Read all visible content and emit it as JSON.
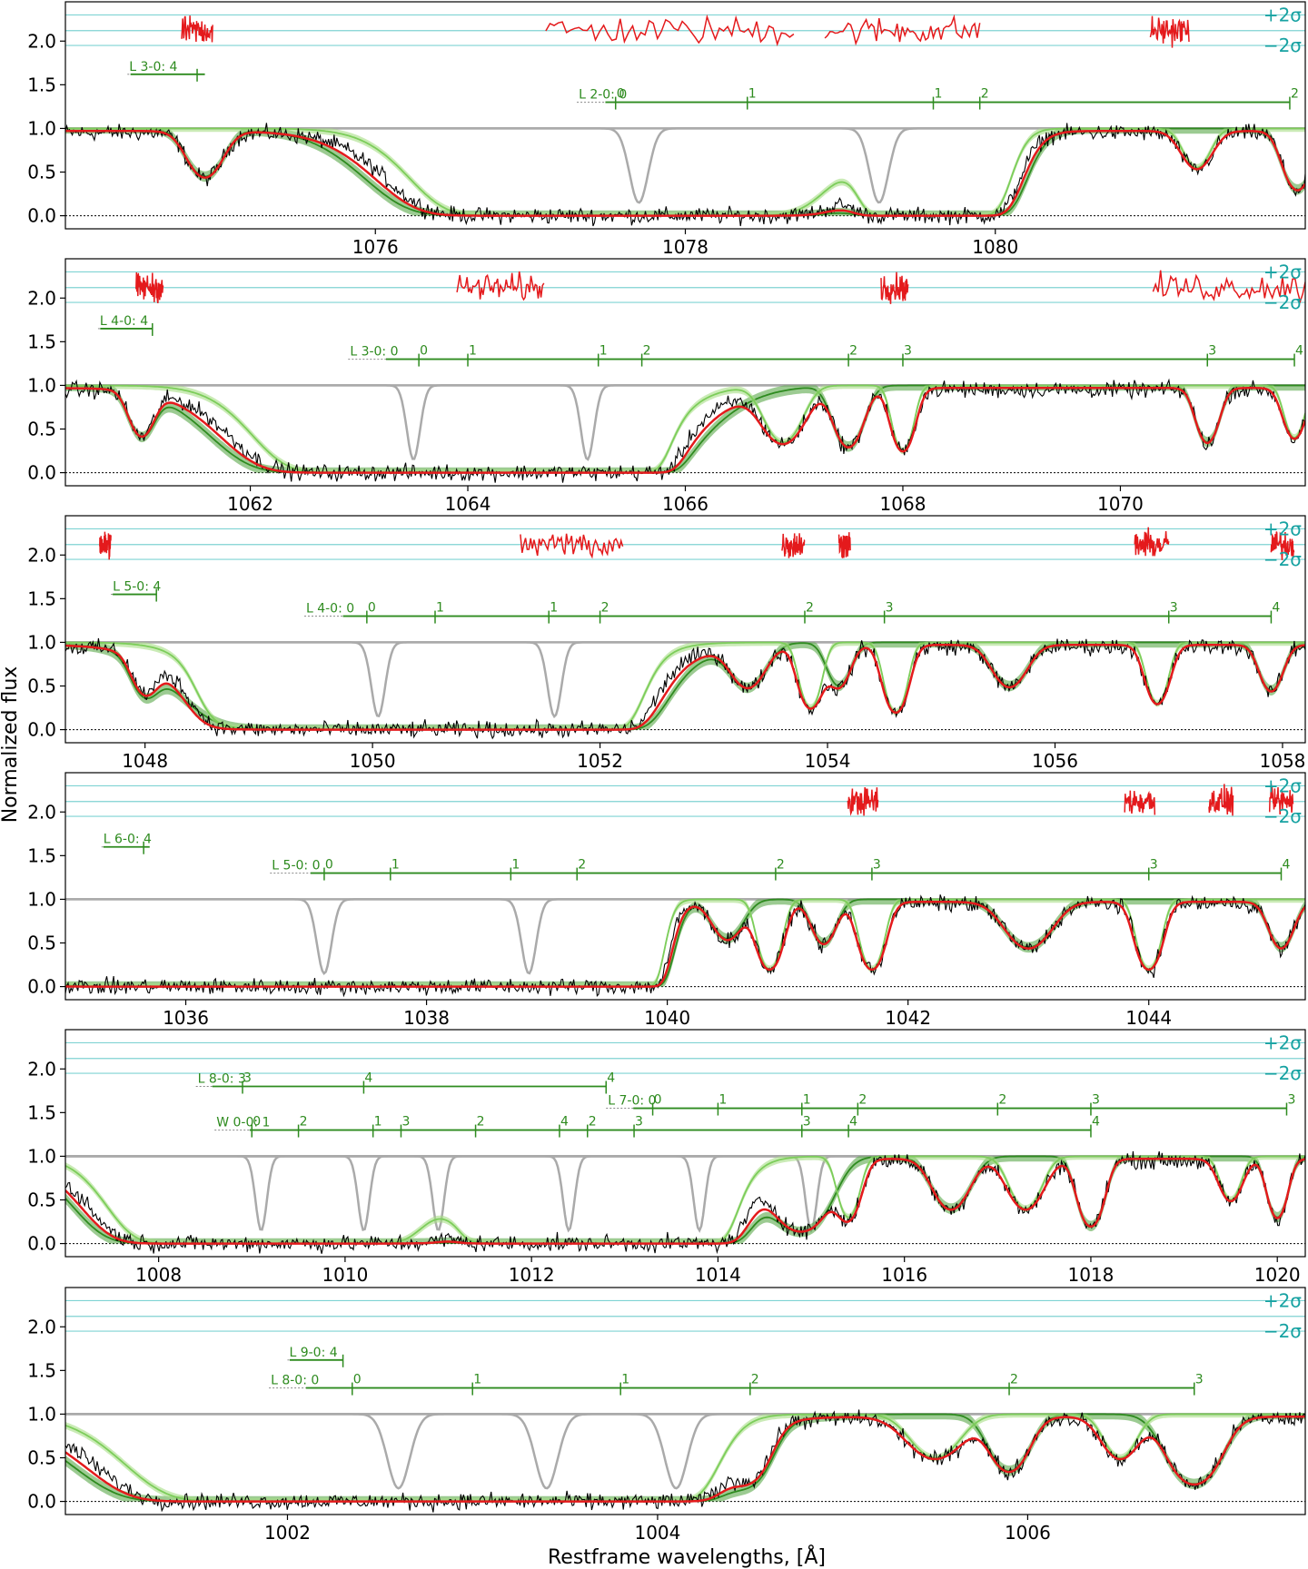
{
  "figure": {
    "ylabel": "Normalized flux",
    "xlabel": "Restframe wavelengths, [Å]",
    "sigma_labels": {
      "plus": "+2σ",
      "minus": "−2σ"
    },
    "colors": {
      "data": "#000000",
      "total_model": "#e41a1c",
      "residuals": "#e41a1c",
      "component_dark": "#2e8b1f",
      "component_light": "#7ccd5a",
      "band_dark": "#5aa84a",
      "band_light": "#a6dd86",
      "other_absorber": "#aaaaaa",
      "sigma_lines": "#7fd3d3",
      "line_markers": "#2e8b1f"
    }
  },
  "chart_data": [
    {
      "type": "line",
      "panel": 1,
      "xlim": [
        1074.0,
        1082.0
      ],
      "ylim": [
        -0.15,
        2.45
      ],
      "xticks": [
        1076,
        1078,
        1080
      ],
      "yticks": [
        0.0,
        0.5,
        1.0,
        1.5,
        2.0
      ],
      "ytick_labels": [
        "0.0",
        "0.5",
        "1.0",
        "1.5",
        "2.0"
      ],
      "absorption": [
        {
          "center": 1074.9,
          "depth": 0.55,
          "width": 0.09
        },
        {
          "center": 1077.6,
          "depth": 1.0,
          "width": 0.55
        },
        {
          "center": 1078.35,
          "depth": 0.7,
          "width": 0.3
        },
        {
          "center": 1079.3,
          "depth": 0.45,
          "width": 0.1
        },
        {
          "center": 1079.6,
          "depth": 1.0,
          "width": 0.2
        },
        {
          "center": 1081.3,
          "depth": 0.45,
          "width": 0.08
        },
        {
          "center": 1081.95,
          "depth": 0.7,
          "width": 0.07
        }
      ],
      "gray_lines": [
        1077.7,
        1079.25
      ],
      "line_series": [
        {
          "label": "L 3-0: 4",
          "y": 1.62,
          "start": 1074.4,
          "end": 1074.9,
          "ticks": [
            {
              "x": 1074.85,
              "t": ""
            }
          ]
        },
        {
          "label": "L 2-0: 0",
          "y": 1.3,
          "start": 1077.3,
          "end": 1081.9,
          "ticks": [
            {
              "x": 1077.55,
              "t": "0"
            },
            {
              "x": 1078.4,
              "t": "1"
            },
            {
              "x": 1079.6,
              "t": "1"
            },
            {
              "x": 1079.9,
              "t": "2"
            },
            {
              "x": 1081.9,
              "t": "2"
            }
          ]
        }
      ],
      "residual_ranges": [
        [
          1074.75,
          1074.95
        ],
        [
          1077.1,
          1078.7
        ],
        [
          1078.9,
          1079.9
        ],
        [
          1081.0,
          1081.25
        ]
      ]
    },
    {
      "type": "line",
      "panel": 2,
      "xlim": [
        1060.3,
        1071.7
      ],
      "ylim": [
        -0.15,
        2.45
      ],
      "xticks": [
        1062,
        1064,
        1066,
        1068,
        1070
      ],
      "yticks": [
        0.0,
        0.5,
        1.0,
        1.5,
        2.0
      ],
      "ytick_labels": [
        "0.0",
        "0.5",
        "1.0",
        "1.5",
        "2.0"
      ],
      "absorption": [
        {
          "center": 1061.0,
          "depth": 0.55,
          "width": 0.09
        },
        {
          "center": 1063.9,
          "depth": 1.0,
          "width": 0.75
        },
        {
          "center": 1064.7,
          "depth": 0.6,
          "width": 0.15
        },
        {
          "center": 1065.2,
          "depth": 1.0,
          "width": 0.25
        },
        {
          "center": 1065.7,
          "depth": 0.7,
          "width": 0.12
        },
        {
          "center": 1066.9,
          "depth": 0.65,
          "width": 0.15
        },
        {
          "center": 1067.5,
          "depth": 0.7,
          "width": 0.1
        },
        {
          "center": 1068.0,
          "depth": 0.75,
          "width": 0.08
        },
        {
          "center": 1070.8,
          "depth": 0.65,
          "width": 0.08
        },
        {
          "center": 1071.6,
          "depth": 0.6,
          "width": 0.08
        }
      ],
      "gray_lines": [
        1063.5,
        1065.1
      ],
      "line_series": [
        {
          "label": "L 4-0: 4",
          "y": 1.65,
          "start": 1060.6,
          "end": 1061.1,
          "ticks": [
            {
              "x": 1061.1,
              "t": ""
            }
          ]
        },
        {
          "label": "L 3-0: 0",
          "y": 1.3,
          "start": 1062.9,
          "end": 1071.6,
          "ticks": [
            {
              "x": 1063.55,
              "t": "0"
            },
            {
              "x": 1064.0,
              "t": "1"
            },
            {
              "x": 1065.2,
              "t": "1"
            },
            {
              "x": 1065.6,
              "t": "2"
            },
            {
              "x": 1067.5,
              "t": "2"
            },
            {
              "x": 1068.0,
              "t": "3"
            },
            {
              "x": 1070.8,
              "t": "3"
            },
            {
              "x": 1071.6,
              "t": "4"
            }
          ]
        }
      ],
      "residual_ranges": [
        [
          1060.95,
          1061.2
        ],
        [
          1063.9,
          1064.7
        ],
        [
          1067.8,
          1068.05
        ],
        [
          1070.3,
          1071.7
        ]
      ]
    },
    {
      "type": "line",
      "panel": 3,
      "xlim": [
        1047.3,
        1058.2
      ],
      "ylim": [
        -0.15,
        2.45
      ],
      "xticks": [
        1048,
        1050,
        1052,
        1054,
        1056,
        1058
      ],
      "yticks": [
        0.0,
        0.5,
        1.0,
        1.5,
        2.0
      ],
      "ytick_labels": [
        "0.0",
        "0.5",
        "1.0",
        "1.5",
        "2.0"
      ],
      "absorption": [
        {
          "center": 1048.0,
          "depth": 0.5,
          "width": 0.09
        },
        {
          "center": 1048.8,
          "depth": 0.9,
          "width": 0.2
        },
        {
          "center": 1050.4,
          "depth": 1.0,
          "width": 0.7
        },
        {
          "center": 1051.1,
          "depth": 0.55,
          "width": 0.12
        },
        {
          "center": 1051.6,
          "depth": 1.0,
          "width": 0.3
        },
        {
          "center": 1052.0,
          "depth": 0.65,
          "width": 0.1
        },
        {
          "center": 1053.3,
          "depth": 0.5,
          "width": 0.12
        },
        {
          "center": 1053.85,
          "depth": 0.75,
          "width": 0.08
        },
        {
          "center": 1054.1,
          "depth": 0.5,
          "width": 0.08
        },
        {
          "center": 1054.6,
          "depth": 0.8,
          "width": 0.08
        },
        {
          "center": 1055.6,
          "depth": 0.5,
          "width": 0.12
        },
        {
          "center": 1056.9,
          "depth": 0.7,
          "width": 0.08
        },
        {
          "center": 1057.9,
          "depth": 0.55,
          "width": 0.08
        }
      ],
      "gray_lines": [
        1050.05,
        1051.6
      ],
      "line_series": [
        {
          "label": "L 5-0: 4",
          "y": 1.55,
          "start": 1047.7,
          "end": 1048.1,
          "ticks": [
            {
              "x": 1048.1,
              "t": ""
            }
          ]
        },
        {
          "label": "L 4-0: 0",
          "y": 1.3,
          "start": 1049.4,
          "end": 1057.9,
          "ticks": [
            {
              "x": 1049.95,
              "t": "0"
            },
            {
              "x": 1050.55,
              "t": "1"
            },
            {
              "x": 1051.55,
              "t": "1"
            },
            {
              "x": 1052.0,
              "t": "2"
            },
            {
              "x": 1053.8,
              "t": "2"
            },
            {
              "x": 1054.5,
              "t": "3"
            },
            {
              "x": 1057.0,
              "t": "3"
            },
            {
              "x": 1057.9,
              "t": "4"
            }
          ]
        }
      ],
      "residual_ranges": [
        [
          1047.6,
          1047.7
        ],
        [
          1051.3,
          1052.2
        ],
        [
          1053.6,
          1053.8
        ],
        [
          1054.1,
          1054.2
        ],
        [
          1056.7,
          1057.0
        ],
        [
          1057.9,
          1058.1
        ]
      ]
    },
    {
      "type": "line",
      "panel": 4,
      "xlim": [
        1035.0,
        1045.3
      ],
      "ylim": [
        -0.15,
        2.45
      ],
      "xticks": [
        1036,
        1038,
        1040,
        1042,
        1044
      ],
      "yticks": [
        0.0,
        0.5,
        1.0,
        1.5,
        2.0
      ],
      "ytick_labels": [
        "0.0",
        "0.5",
        "1.0",
        "1.5",
        "2.0"
      ],
      "absorption": [
        {
          "center": 1035.6,
          "depth": 0.5,
          "width": 0.1
        },
        {
          "center": 1036.5,
          "depth": 1.0,
          "width": 0.8
        },
        {
          "center": 1037.5,
          "depth": 1.0,
          "width": 0.5
        },
        {
          "center": 1038.3,
          "depth": 0.55,
          "width": 0.12
        },
        {
          "center": 1038.9,
          "depth": 1.0,
          "width": 0.3
        },
        {
          "center": 1039.6,
          "depth": 1.0,
          "width": 0.15
        },
        {
          "center": 1040.5,
          "depth": 0.45,
          "width": 0.1
        },
        {
          "center": 1040.85,
          "depth": 0.8,
          "width": 0.08
        },
        {
          "center": 1041.3,
          "depth": 0.5,
          "width": 0.08
        },
        {
          "center": 1041.7,
          "depth": 0.8,
          "width": 0.08
        },
        {
          "center": 1043.0,
          "depth": 0.55,
          "width": 0.15
        },
        {
          "center": 1044.0,
          "depth": 0.8,
          "width": 0.08
        },
        {
          "center": 1045.1,
          "depth": 0.55,
          "width": 0.08
        }
      ],
      "gray_lines": [
        1037.15,
        1038.85
      ],
      "line_series": [
        {
          "label": "L 6-0: 4",
          "y": 1.6,
          "start": 1035.3,
          "end": 1035.7,
          "ticks": [
            {
              "x": 1035.65,
              "t": ""
            }
          ]
        },
        {
          "label": "L 5-0: 0",
          "y": 1.3,
          "start": 1036.7,
          "end": 1045.1,
          "ticks": [
            {
              "x": 1037.15,
              "t": "0"
            },
            {
              "x": 1037.7,
              "t": "1"
            },
            {
              "x": 1038.7,
              "t": "1"
            },
            {
              "x": 1039.25,
              "t": "2"
            },
            {
              "x": 1040.9,
              "t": "2"
            },
            {
              "x": 1041.7,
              "t": "3"
            },
            {
              "x": 1044.0,
              "t": "3"
            },
            {
              "x": 1045.1,
              "t": "4"
            }
          ]
        }
      ],
      "residual_ranges": [
        [
          1041.5,
          1041.75
        ],
        [
          1043.8,
          1044.05
        ],
        [
          1044.5,
          1044.7
        ],
        [
          1045.0,
          1045.2
        ]
      ]
    },
    {
      "type": "line",
      "panel": 5,
      "xlim": [
        1007.0,
        1020.3
      ],
      "ylim": [
        -0.15,
        2.45
      ],
      "xticks": [
        1008,
        1010,
        1012,
        1014,
        1016,
        1018,
        1020
      ],
      "yticks": [
        0.0,
        0.5,
        1.0,
        1.5,
        2.0
      ],
      "ytick_labels": [
        "0.0",
        "0.5",
        "1.0",
        "1.5",
        "2.0"
      ],
      "absorption": [
        {
          "center": 1009.2,
          "depth": 1.0,
          "width": 0.7
        },
        {
          "center": 1010.0,
          "depth": 0.9,
          "width": 0.35
        },
        {
          "center": 1010.8,
          "depth": 0.8,
          "width": 0.15
        },
        {
          "center": 1011.4,
          "depth": 0.6,
          "width": 0.1
        },
        {
          "center": 1012.6,
          "depth": 1.0,
          "width": 0.6
        },
        {
          "center": 1013.4,
          "depth": 1.0,
          "width": 0.3
        },
        {
          "center": 1014.9,
          "depth": 0.85,
          "width": 0.2
        },
        {
          "center": 1015.4,
          "depth": 0.7,
          "width": 0.1
        },
        {
          "center": 1016.5,
          "depth": 0.6,
          "width": 0.15
        },
        {
          "center": 1017.3,
          "depth": 0.6,
          "width": 0.15
        },
        {
          "center": 1018.0,
          "depth": 0.8,
          "width": 0.1
        },
        {
          "center": 1019.5,
          "depth": 0.5,
          "width": 0.1
        },
        {
          "center": 1020.0,
          "depth": 0.7,
          "width": 0.08
        }
      ],
      "gray_lines": [
        1009.1,
        1010.2,
        1011.0,
        1012.4,
        1013.8,
        1015.0
      ],
      "line_series": [
        {
          "label": "L 8-0: 3",
          "y": 1.8,
          "start": 1008.4,
          "end": 1012.8,
          "ticks": [
            {
              "x": 1008.9,
              "t": "3"
            },
            {
              "x": 1010.2,
              "t": "4"
            },
            {
              "x": 1012.8,
              "t": "4"
            }
          ]
        },
        {
          "label": "L 7-0: 0",
          "y": 1.55,
          "start": 1012.8,
          "end": 1020.1,
          "ticks": [
            {
              "x": 1013.3,
              "t": "0"
            },
            {
              "x": 1014.0,
              "t": "1"
            },
            {
              "x": 1014.9,
              "t": "1"
            },
            {
              "x": 1015.5,
              "t": "2"
            },
            {
              "x": 1017.0,
              "t": "2"
            },
            {
              "x": 1018.0,
              "t": "3"
            },
            {
              "x": 1020.1,
              "t": "3"
            }
          ]
        },
        {
          "label": "W 0-0: 1",
          "y": 1.3,
          "start": 1008.6,
          "end": 1018.0,
          "ticks": [
            {
              "x": 1009.0,
              "t": "0"
            },
            {
              "x": 1009.5,
              "t": "2"
            },
            {
              "x": 1010.3,
              "t": "1"
            },
            {
              "x": 1010.6,
              "t": "3"
            },
            {
              "x": 1011.4,
              "t": "2"
            },
            {
              "x": 1012.3,
              "t": "4"
            },
            {
              "x": 1012.6,
              "t": "2"
            },
            {
              "x": 1013.1,
              "t": "3"
            },
            {
              "x": 1014.9,
              "t": "3"
            },
            {
              "x": 1015.4,
              "t": "4"
            },
            {
              "x": 1018.0,
              "t": "4"
            }
          ]
        }
      ],
      "residual_ranges": []
    },
    {
      "type": "line",
      "panel": 6,
      "xlim": [
        1000.8,
        1007.5
      ],
      "ylim": [
        -0.15,
        2.45
      ],
      "xticks": [
        1002,
        1004,
        1006
      ],
      "yticks": [
        0.0,
        0.5,
        1.0,
        1.5,
        2.0
      ],
      "ytick_labels": [
        "0.0",
        "0.5",
        "1.0",
        "1.5",
        "2.0"
      ],
      "absorption": [
        {
          "center": 1001.7,
          "depth": 0.9,
          "width": 0.25
        },
        {
          "center": 1002.5,
          "depth": 1.0,
          "width": 0.55
        },
        {
          "center": 1003.2,
          "depth": 0.9,
          "width": 0.25
        },
        {
          "center": 1003.7,
          "depth": 1.0,
          "width": 0.25
        },
        {
          "center": 1004.5,
          "depth": 0.65,
          "width": 0.08
        },
        {
          "center": 1005.5,
          "depth": 0.5,
          "width": 0.12
        },
        {
          "center": 1005.9,
          "depth": 0.65,
          "width": 0.08
        },
        {
          "center": 1006.5,
          "depth": 0.5,
          "width": 0.08
        },
        {
          "center": 1006.9,
          "depth": 0.8,
          "width": 0.1
        }
      ],
      "gray_lines": [
        1002.6,
        1003.4,
        1004.1
      ],
      "line_series": [
        {
          "label": "L 9-0: 4",
          "y": 1.62,
          "start": 1002.0,
          "end": 1002.3,
          "ticks": [
            {
              "x": 1002.3,
              "t": ""
            }
          ]
        },
        {
          "label": "L 8-0: 0",
          "y": 1.3,
          "start": 1001.9,
          "end": 1006.9,
          "ticks": [
            {
              "x": 1002.35,
              "t": "0"
            },
            {
              "x": 1003.0,
              "t": "1"
            },
            {
              "x": 1003.8,
              "t": "1"
            },
            {
              "x": 1004.5,
              "t": "2"
            },
            {
              "x": 1005.9,
              "t": "2"
            },
            {
              "x": 1006.9,
              "t": "3"
            }
          ]
        }
      ],
      "residual_ranges": []
    }
  ]
}
